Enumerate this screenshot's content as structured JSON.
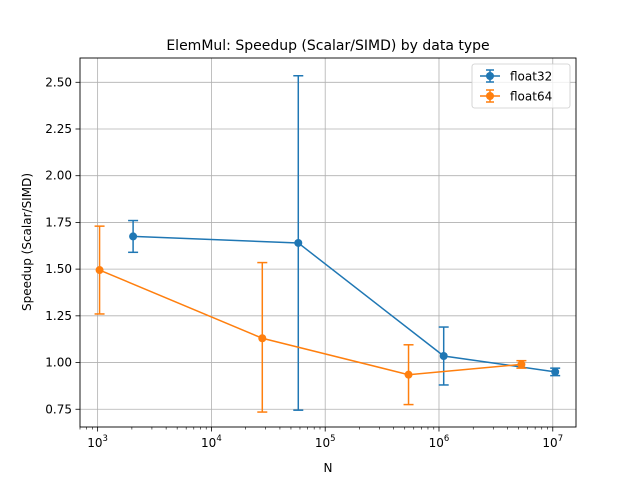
{
  "chart_data": {
    "type": "line",
    "title": "ElemMul: Speedup (Scalar/SIMD) by data type",
    "xlabel": "N",
    "ylabel": "Speedup (Scalar/SIMD)",
    "x_scale": "log",
    "xlim": [
      700,
      16000000
    ],
    "ylim": [
      0.655,
      2.63
    ],
    "grid": true,
    "legend_position": "top-right",
    "x_ticks": [
      {
        "value": 1000,
        "base": "10",
        "exp": "3"
      },
      {
        "value": 10000,
        "base": "10",
        "exp": "4"
      },
      {
        "value": 100000,
        "base": "10",
        "exp": "5"
      },
      {
        "value": 1000000,
        "base": "10",
        "exp": "6"
      },
      {
        "value": 10000000,
        "base": "10",
        "exp": "7"
      }
    ],
    "y_ticks": [
      {
        "value": 0.75,
        "label": "0.75"
      },
      {
        "value": 1.0,
        "label": "1.00"
      },
      {
        "value": 1.25,
        "label": "1.25"
      },
      {
        "value": 1.5,
        "label": "1.50"
      },
      {
        "value": 1.75,
        "label": "1.75"
      },
      {
        "value": 2.0,
        "label": "2.00"
      },
      {
        "value": 2.25,
        "label": "2.25"
      },
      {
        "value": 2.5,
        "label": "2.50"
      }
    ],
    "series": [
      {
        "name": "float32",
        "color": "#1f77b4",
        "points": [
          {
            "x": 2050,
            "y": 1.675,
            "err_low": 1.59,
            "err_high": 1.76
          },
          {
            "x": 58000,
            "y": 1.64,
            "err_low": 0.745,
            "err_high": 2.535
          },
          {
            "x": 1100000,
            "y": 1.035,
            "err_low": 0.88,
            "err_high": 1.19
          },
          {
            "x": 10500000,
            "y": 0.95,
            "err_low": 0.93,
            "err_high": 0.97
          }
        ]
      },
      {
        "name": "float64",
        "color": "#ff7f0e",
        "points": [
          {
            "x": 1040,
            "y": 1.495,
            "err_low": 1.26,
            "err_high": 1.73
          },
          {
            "x": 28000,
            "y": 1.13,
            "err_low": 0.735,
            "err_high": 1.535
          },
          {
            "x": 540000,
            "y": 0.935,
            "err_low": 0.775,
            "err_high": 1.095
          },
          {
            "x": 5300000,
            "y": 0.99,
            "err_low": 0.97,
            "err_high": 1.01
          }
        ]
      }
    ]
  }
}
